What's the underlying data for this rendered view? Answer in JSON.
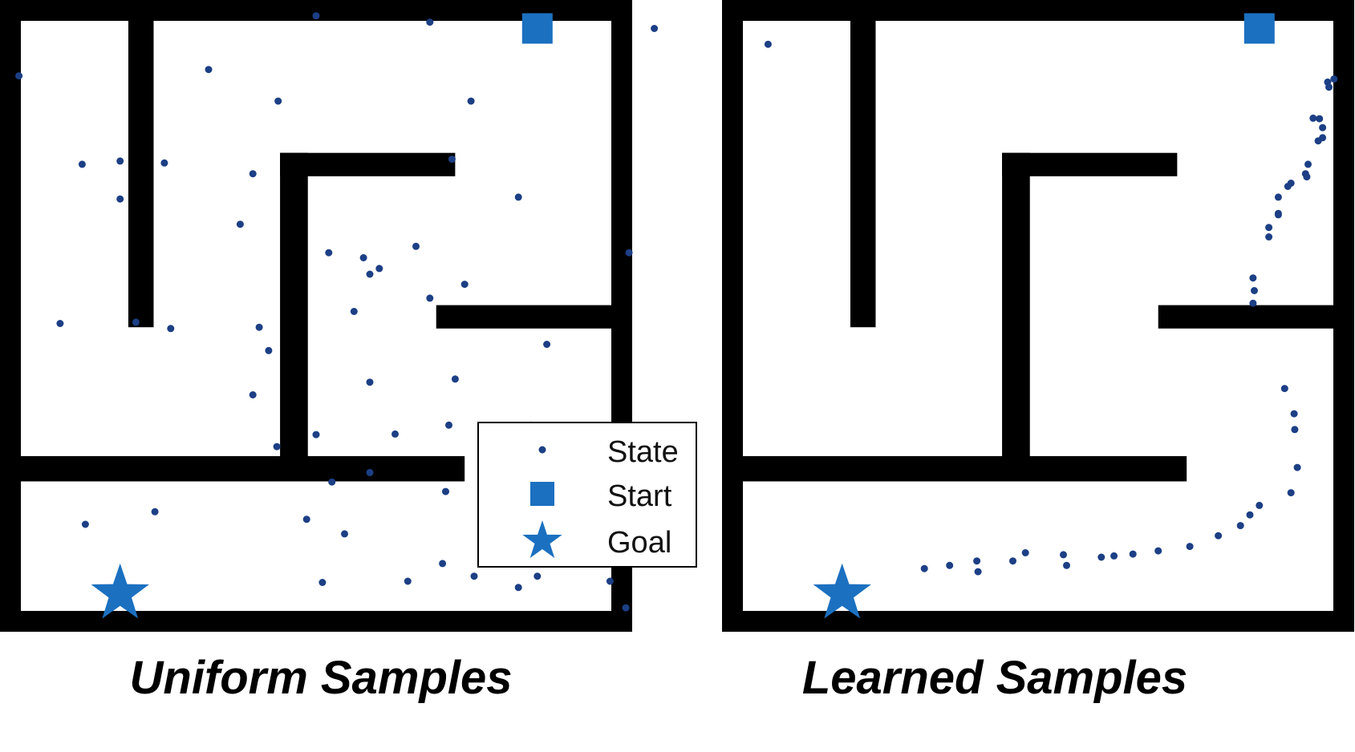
{
  "panels": [
    {
      "caption": "Uniform Samples",
      "states": [
        [
          500,
          975
        ],
        [
          680,
          965
        ],
        [
          1035,
          955
        ],
        [
          1215,
          930
        ],
        [
          30,
          880
        ],
        [
          330,
          890
        ],
        [
          440,
          840
        ],
        [
          130,
          740
        ],
        [
          745,
          840
        ],
        [
          715,
          748
        ],
        [
          190,
          745
        ],
        [
          260,
          742
        ],
        [
          190,
          685
        ],
        [
          400,
          725
        ],
        [
          380,
          645
        ],
        [
          520,
          600
        ],
        [
          95,
          488
        ],
        [
          215,
          490
        ],
        [
          270,
          480
        ],
        [
          585,
          566
        ],
        [
          820,
          688
        ],
        [
          658,
          610
        ],
        [
          575,
          592
        ],
        [
          600,
          575
        ],
        [
          680,
          528
        ],
        [
          735,
          550
        ],
        [
          560,
          507
        ],
        [
          410,
          482
        ],
        [
          425,
          445
        ],
        [
          720,
          400
        ],
        [
          500,
          312
        ],
        [
          585,
          252
        ],
        [
          710,
          327
        ],
        [
          585,
          395
        ],
        [
          400,
          375
        ],
        [
          625,
          313
        ],
        [
          438,
          293
        ],
        [
          840,
          327
        ],
        [
          525,
          237
        ],
        [
          705,
          222
        ],
        [
          835,
          232
        ],
        [
          750,
          88
        ],
        [
          850,
          88
        ],
        [
          485,
          178
        ],
        [
          545,
          155
        ],
        [
          700,
          108
        ],
        [
          135,
          170
        ],
        [
          245,
          190
        ],
        [
          510,
          78
        ],
        [
          645,
          80
        ],
        [
          820,
          70
        ],
        [
          900,
          135
        ],
        [
          865,
          455
        ],
        [
          990,
          38
        ],
        [
          995,
          600
        ],
        [
          965,
          80
        ]
      ],
      "legend": {
        "state": "State",
        "start": "Start",
        "goal": "Goal"
      }
    },
    {
      "caption": "Learned Samples",
      "states": [
        [
          968,
          875
        ],
        [
          958,
          870
        ],
        [
          960,
          862
        ],
        [
          945,
          812
        ],
        [
          935,
          813
        ],
        [
          950,
          798
        ],
        [
          950,
          782
        ],
        [
          943,
          777
        ],
        [
          927,
          740
        ],
        [
          923,
          725
        ],
        [
          925,
          720
        ],
        [
          900,
          710
        ],
        [
          895,
          705
        ],
        [
          880,
          688
        ],
        [
          880,
          662
        ],
        [
          880,
          660
        ],
        [
          865,
          640
        ],
        [
          865,
          625
        ],
        [
          840,
          560
        ],
        [
          842,
          540
        ],
        [
          840,
          520
        ],
        [
          890,
          385
        ],
        [
          905,
          345
        ],
        [
          906,
          320
        ],
        [
          910,
          260
        ],
        [
          900,
          220
        ],
        [
          850,
          200
        ],
        [
          835,
          185
        ],
        [
          820,
          168
        ],
        [
          785,
          152
        ],
        [
          740,
          135
        ],
        [
          690,
          128
        ],
        [
          650,
          123
        ],
        [
          620,
          120
        ],
        [
          600,
          118
        ],
        [
          545,
          105
        ],
        [
          540,
          122
        ],
        [
          480,
          125
        ],
        [
          460,
          112
        ],
        [
          403,
          112
        ],
        [
          405,
          95
        ],
        [
          360,
          105
        ],
        [
          320,
          100
        ]
      ]
    }
  ]
}
